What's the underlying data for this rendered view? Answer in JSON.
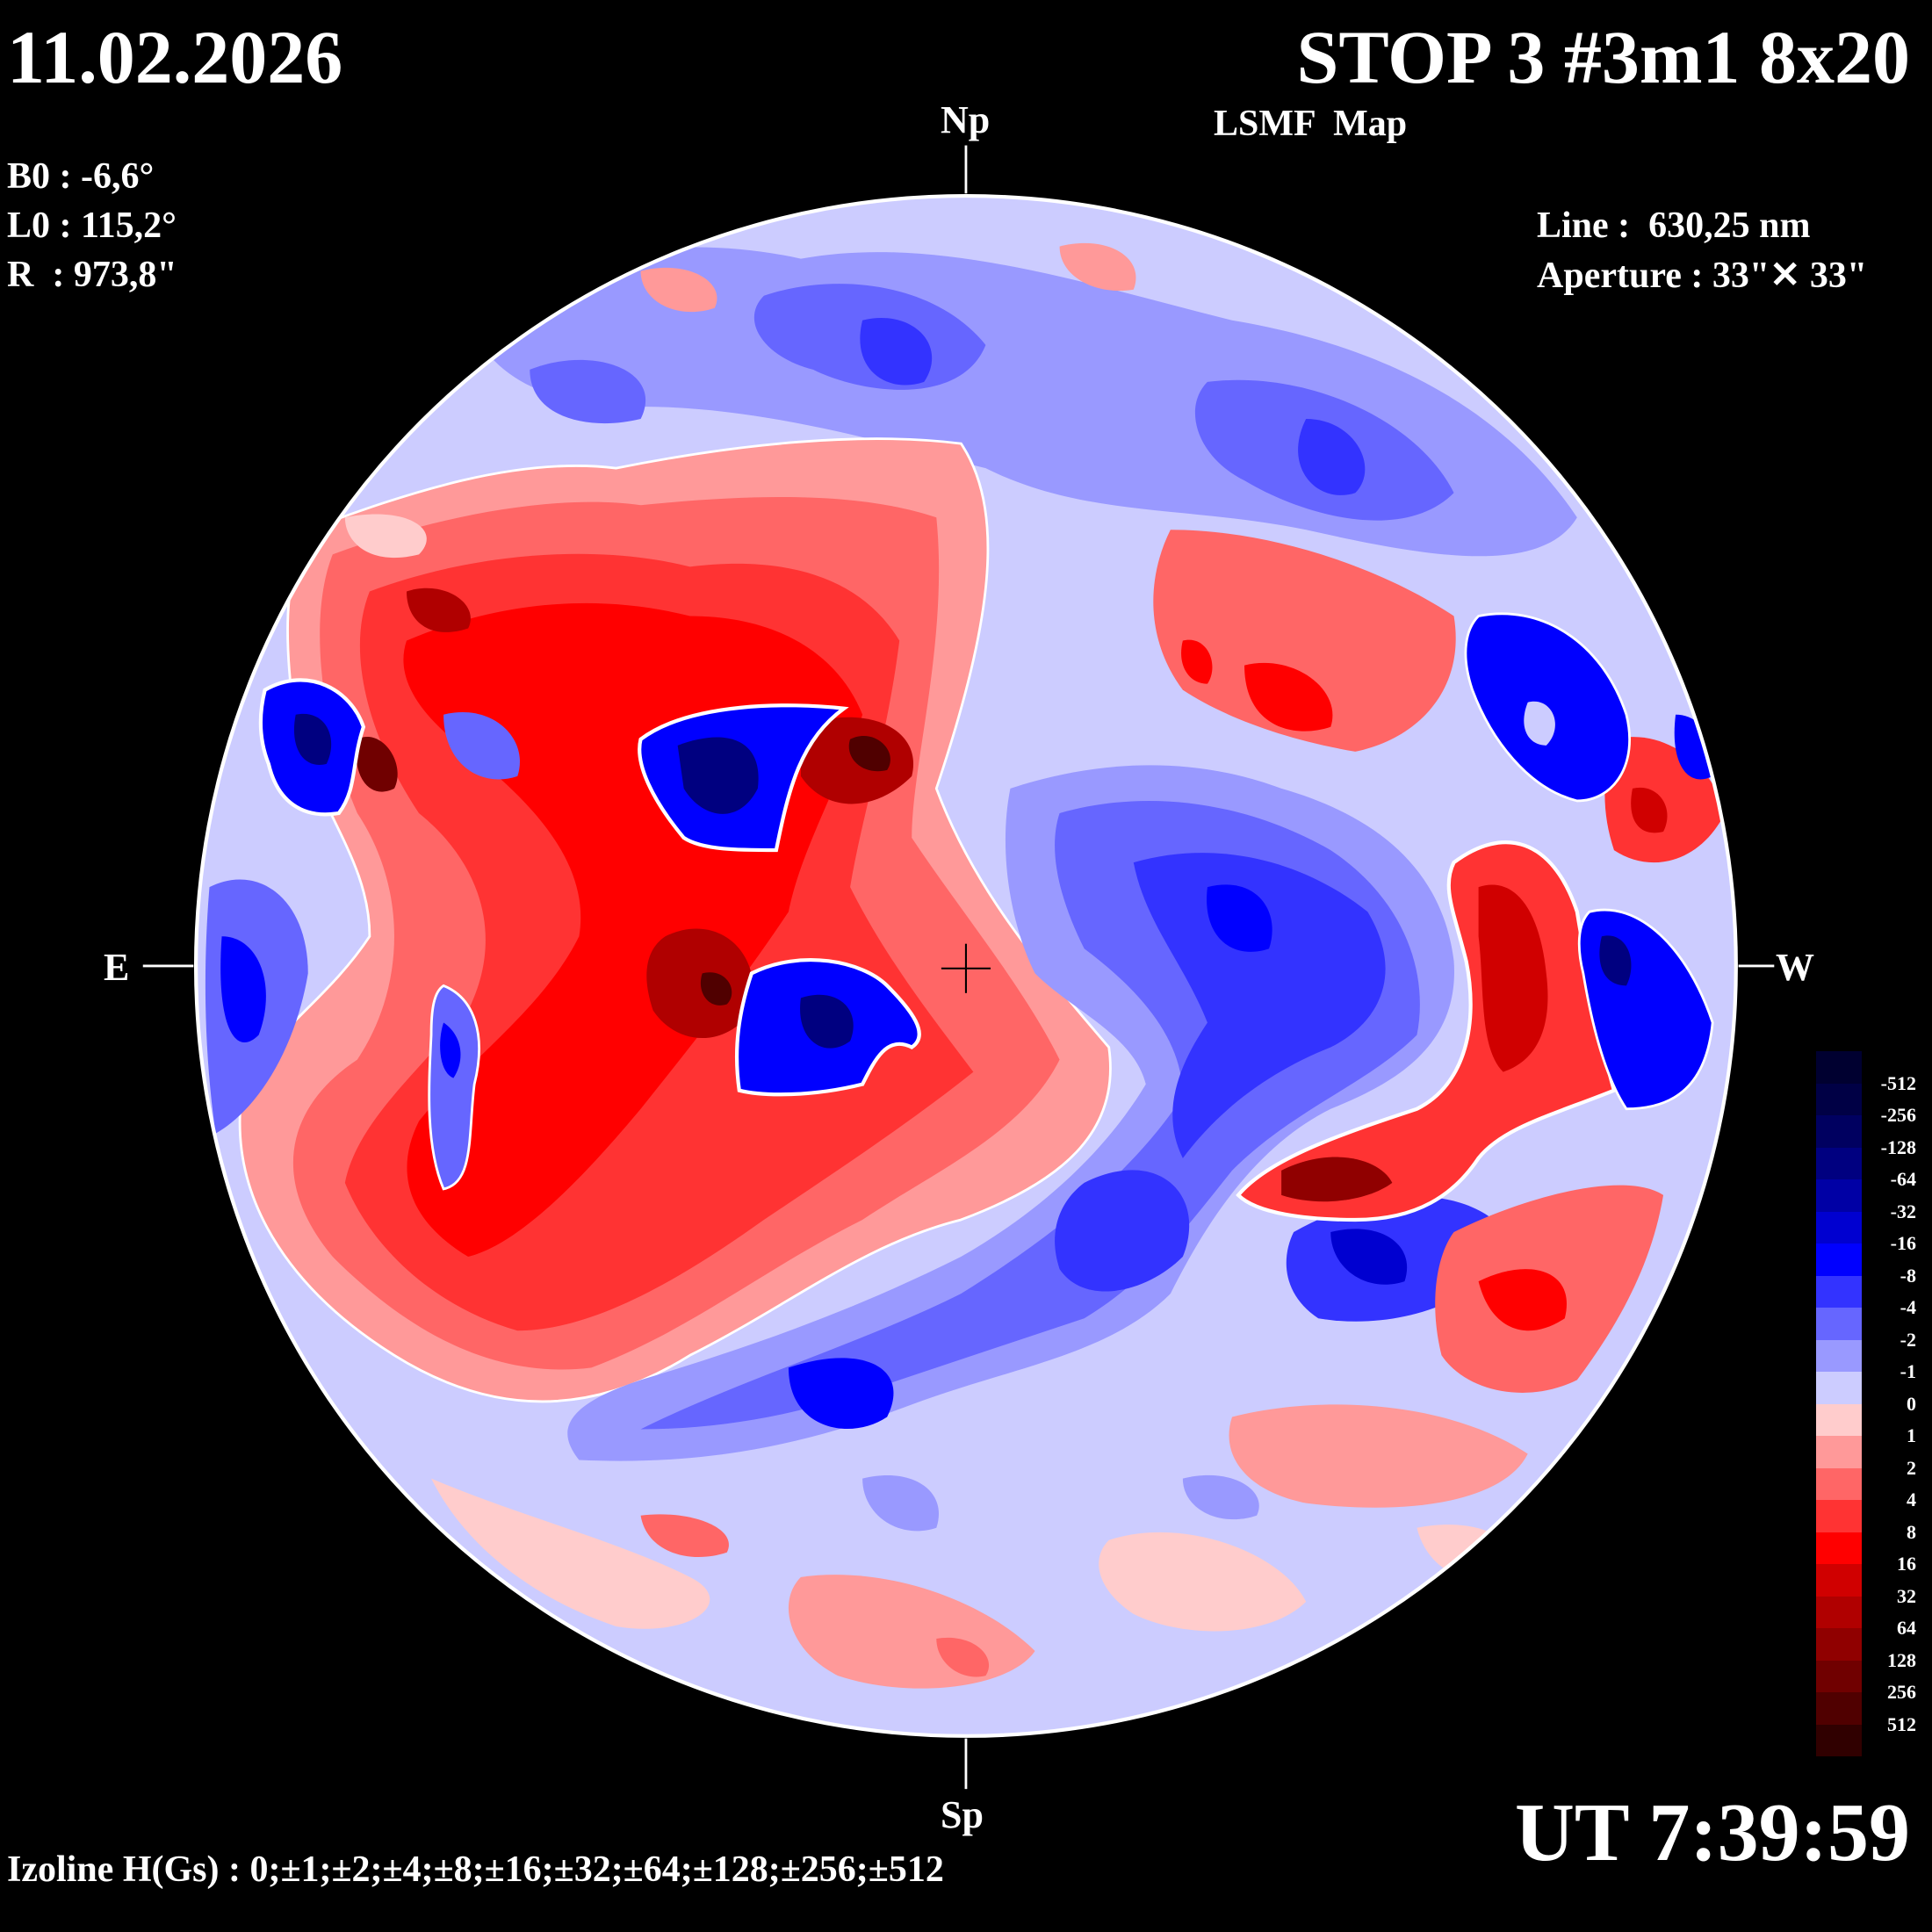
{
  "header": {
    "date": "11.02.2026",
    "title": "STOP 3 #3m1 8x20",
    "subtitle": "LSMF  Map"
  },
  "params": {
    "b0": "B0 : -6,6°",
    "l0": "L0 : 115,2°",
    "r": "R  : 973,8\"",
    "line": "Line :  630,25 nm",
    "aperture": "Aperture : 33\"✕ 33\""
  },
  "directions": {
    "north": "Np",
    "south": "Sp",
    "east": "E",
    "west": "W"
  },
  "footer": {
    "ut": "UT 7:39:59",
    "izoline": "Izoline H(Gs) : 0;±1;±2;±4;±8;±16;±32;±64;±128;±256;±512"
  },
  "chart_data": {
    "type": "heatmap",
    "title": "LSMF Map",
    "unit": "Gs",
    "legend_placement": "right",
    "legend_levels": [
      "-512",
      "-256",
      "-128",
      "-64",
      "-32",
      "-16",
      "-8",
      "-4",
      "-2",
      "-1",
      "0",
      "1",
      "2",
      "4",
      "8",
      "16",
      "32",
      "64",
      "128",
      "256",
      "512"
    ],
    "legend_colors": [
      "#000030",
      "#000045",
      "#000060",
      "#000080",
      "#0000a5",
      "#0000d0",
      "#0000ff",
      "#3333ff",
      "#6666ff",
      "#9999ff",
      "#ccccff",
      "#ffcccc",
      "#ff9999",
      "#ff6666",
      "#ff3333",
      "#ff0000",
      "#d00000",
      "#b00000",
      "#900000",
      "#700000",
      "#500000",
      "#300000"
    ]
  }
}
